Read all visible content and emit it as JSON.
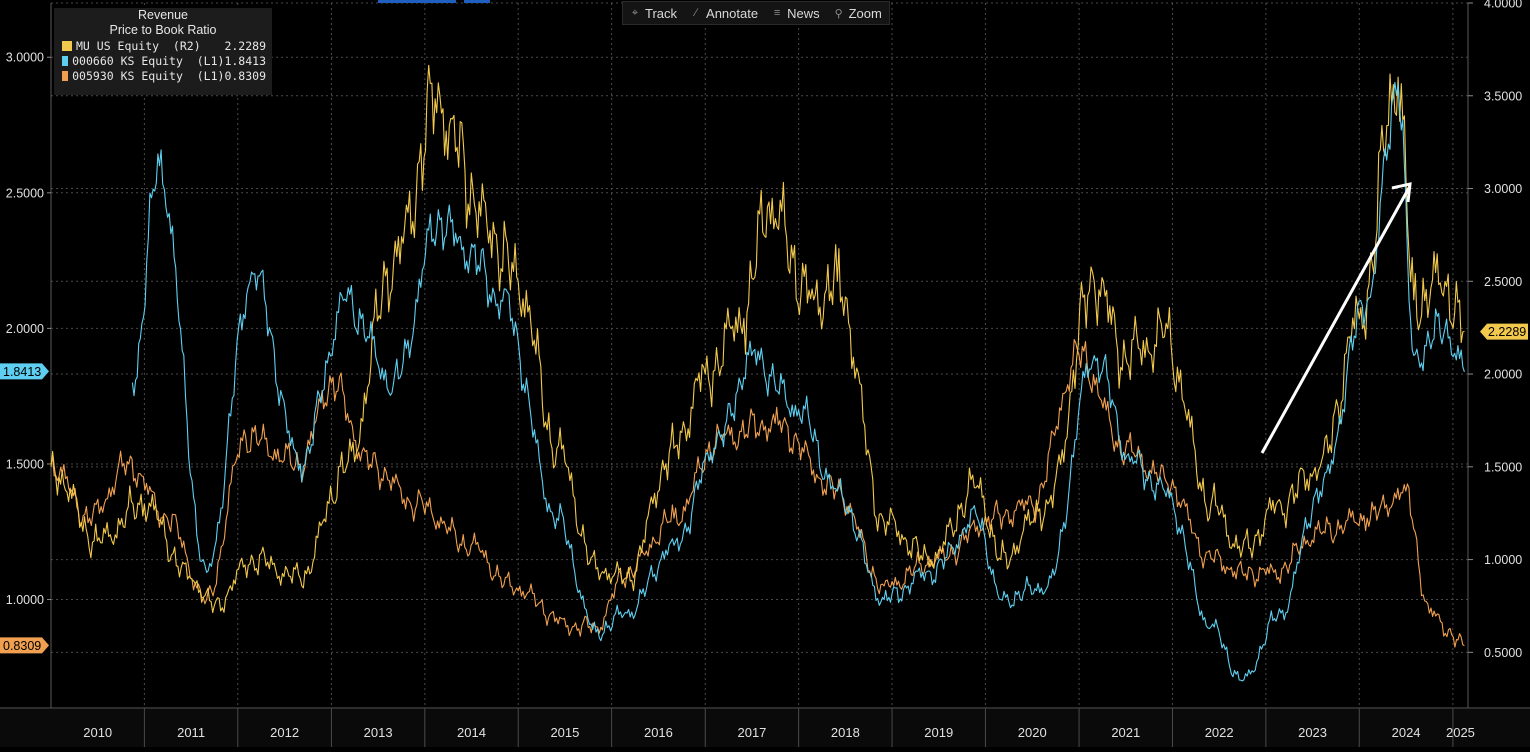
{
  "toolbar": {
    "buttons": [
      {
        "label": "Track",
        "icon": "crosshair-icon"
      },
      {
        "label": "Annotate",
        "icon": "pencil-icon"
      },
      {
        "label": "News",
        "icon": "news-icon"
      },
      {
        "label": "Zoom",
        "icon": "zoom-icon"
      }
    ]
  },
  "legend": {
    "title_lines": [
      "Revenue",
      "Price to Book Ratio"
    ],
    "items": [
      {
        "name": "MU US Equity  (R2)",
        "value": "2.2289",
        "color": "#f2c94c"
      },
      {
        "name": "000660 KS Equity  (L1)",
        "value": "1.8413",
        "color": "#5ecff0"
      },
      {
        "name": "005930 KS Equity  (L1)",
        "value": "0.8309",
        "color": "#f0a050"
      }
    ]
  },
  "chart_data": {
    "type": "line",
    "x_type": "date",
    "x_range": [
      "2010-01-01",
      "2025-03-01"
    ],
    "x_tick_labels": [
      "2010",
      "2011",
      "2012",
      "2013",
      "2014",
      "2015",
      "2016",
      "2017",
      "2018",
      "2019",
      "2020",
      "2021",
      "2022",
      "2023",
      "2024",
      "2025"
    ],
    "left_axis": {
      "ylim": [
        0.6,
        3.2
      ],
      "ticks": [
        "1.0000",
        "1.5000",
        "2.0000",
        "2.5000",
        "3.0000"
      ]
    },
    "right_axis": {
      "ylim": [
        0.2,
        4.0
      ],
      "ticks": [
        "0.5000",
        "1.0000",
        "1.5000",
        "2.0000",
        "2.5000",
        "3.0000",
        "3.5000",
        "4.0000"
      ]
    },
    "grid": true,
    "last_value_tags": [
      {
        "text": "1.8413",
        "axis": "left",
        "value": 1.8413,
        "color": "#5ecff0"
      },
      {
        "text": "0.8309",
        "axis": "left",
        "value": 0.8309,
        "color": "#f0a050"
      },
      {
        "text": "2.2289",
        "axis": "right",
        "value": 2.2289,
        "color": "#f2c94c"
      }
    ],
    "series": [
      {
        "name": "MU US Equity  (R2)",
        "axis": "right",
        "color": "#f2c94c",
        "x": [
          "2010-01-01",
          "2010-07-01",
          "2011-01-01",
          "2011-07-01",
          "2011-10-01",
          "2012-03-01",
          "2012-09-01",
          "2013-03-01",
          "2013-09-01",
          "2014-03-01",
          "2014-05-01",
          "2014-09-01",
          "2015-01-01",
          "2015-06-01",
          "2015-11-01",
          "2016-03-01",
          "2016-09-01",
          "2017-01-01",
          "2017-06-01",
          "2017-09-01",
          "2018-03-01",
          "2018-06-01",
          "2018-12-01",
          "2019-06-01",
          "2019-12-01",
          "2020-03-01",
          "2020-09-01",
          "2021-03-01",
          "2021-07-01",
          "2021-12-01",
          "2022-06-01",
          "2022-10-01",
          "2023-03-01",
          "2023-08-01",
          "2024-01-01",
          "2024-06-01",
          "2024-08-01",
          "2024-12-01",
          "2025-02-15"
        ],
        "values": [
          1.5,
          1.1,
          1.3,
          0.9,
          0.75,
          1.0,
          0.9,
          1.5,
          2.6,
          3.5,
          3.2,
          2.8,
          2.5,
          1.6,
          0.95,
          0.9,
          1.6,
          2.0,
          2.3,
          2.9,
          2.4,
          2.5,
          1.2,
          1.0,
          1.4,
          1.0,
          1.3,
          2.5,
          2.1,
          2.2,
          1.3,
          1.05,
          1.3,
          1.5,
          2.3,
          3.6,
          2.4,
          2.5,
          2.23
        ]
      },
      {
        "name": "000660 KS Equity  (L1)",
        "axis": "left",
        "color": "#5ecff0",
        "x": [
          "2010-11-15",
          "2011-03-01",
          "2011-09-01",
          "2012-03-01",
          "2012-09-01",
          "2013-03-01",
          "2013-09-01",
          "2014-03-01",
          "2014-06-01",
          "2014-11-01",
          "2015-06-01",
          "2015-11-01",
          "2016-03-01",
          "2016-09-01",
          "2017-03-01",
          "2017-07-01",
          "2018-01-01",
          "2018-06-01",
          "2018-12-01",
          "2019-06-01",
          "2019-12-01",
          "2020-03-01",
          "2020-09-01",
          "2021-03-01",
          "2021-08-01",
          "2021-12-01",
          "2022-06-01",
          "2022-10-01",
          "2023-03-01",
          "2023-08-01",
          "2024-02-01",
          "2024-06-01",
          "2024-08-01",
          "2024-12-01",
          "2025-02-15"
        ],
        "values": [
          1.8,
          2.6,
          1.1,
          2.2,
          1.5,
          2.1,
          1.8,
          2.4,
          2.3,
          2.1,
          1.3,
          0.88,
          0.95,
          1.2,
          1.6,
          1.9,
          1.7,
          1.4,
          1.0,
          1.1,
          1.3,
          1.0,
          1.05,
          1.9,
          1.5,
          1.4,
          0.9,
          0.7,
          0.95,
          1.4,
          2.1,
          2.9,
          1.9,
          2.0,
          1.84
        ]
      },
      {
        "name": "005930 KS Equity  (L1)",
        "axis": "left",
        "color": "#f0a050",
        "x": [
          "2010-01-01",
          "2010-06-01",
          "2010-11-01",
          "2011-04-01",
          "2011-09-01",
          "2012-02-01",
          "2012-09-01",
          "2013-01-01",
          "2013-06-01",
          "2013-12-01",
          "2014-07-01",
          "2014-12-01",
          "2015-08-01",
          "2015-11-01",
          "2016-03-01",
          "2016-09-01",
          "2017-03-01",
          "2017-10-01",
          "2018-06-01",
          "2018-12-01",
          "2019-07-01",
          "2020-02-01",
          "2020-07-01",
          "2021-01-01",
          "2021-07-01",
          "2021-12-01",
          "2022-06-01",
          "2022-10-01",
          "2023-02-01",
          "2023-08-01",
          "2024-02-01",
          "2024-07-01",
          "2024-10-01",
          "2025-02-15"
        ],
        "values": [
          1.5,
          1.3,
          1.5,
          1.3,
          1.0,
          1.6,
          1.5,
          1.8,
          1.5,
          1.35,
          1.2,
          1.05,
          0.9,
          0.9,
          1.1,
          1.3,
          1.6,
          1.65,
          1.4,
          1.05,
          1.15,
          1.3,
          1.35,
          1.9,
          1.55,
          1.45,
          1.15,
          1.1,
          1.1,
          1.25,
          1.3,
          1.4,
          0.95,
          0.83
        ]
      }
    ]
  }
}
